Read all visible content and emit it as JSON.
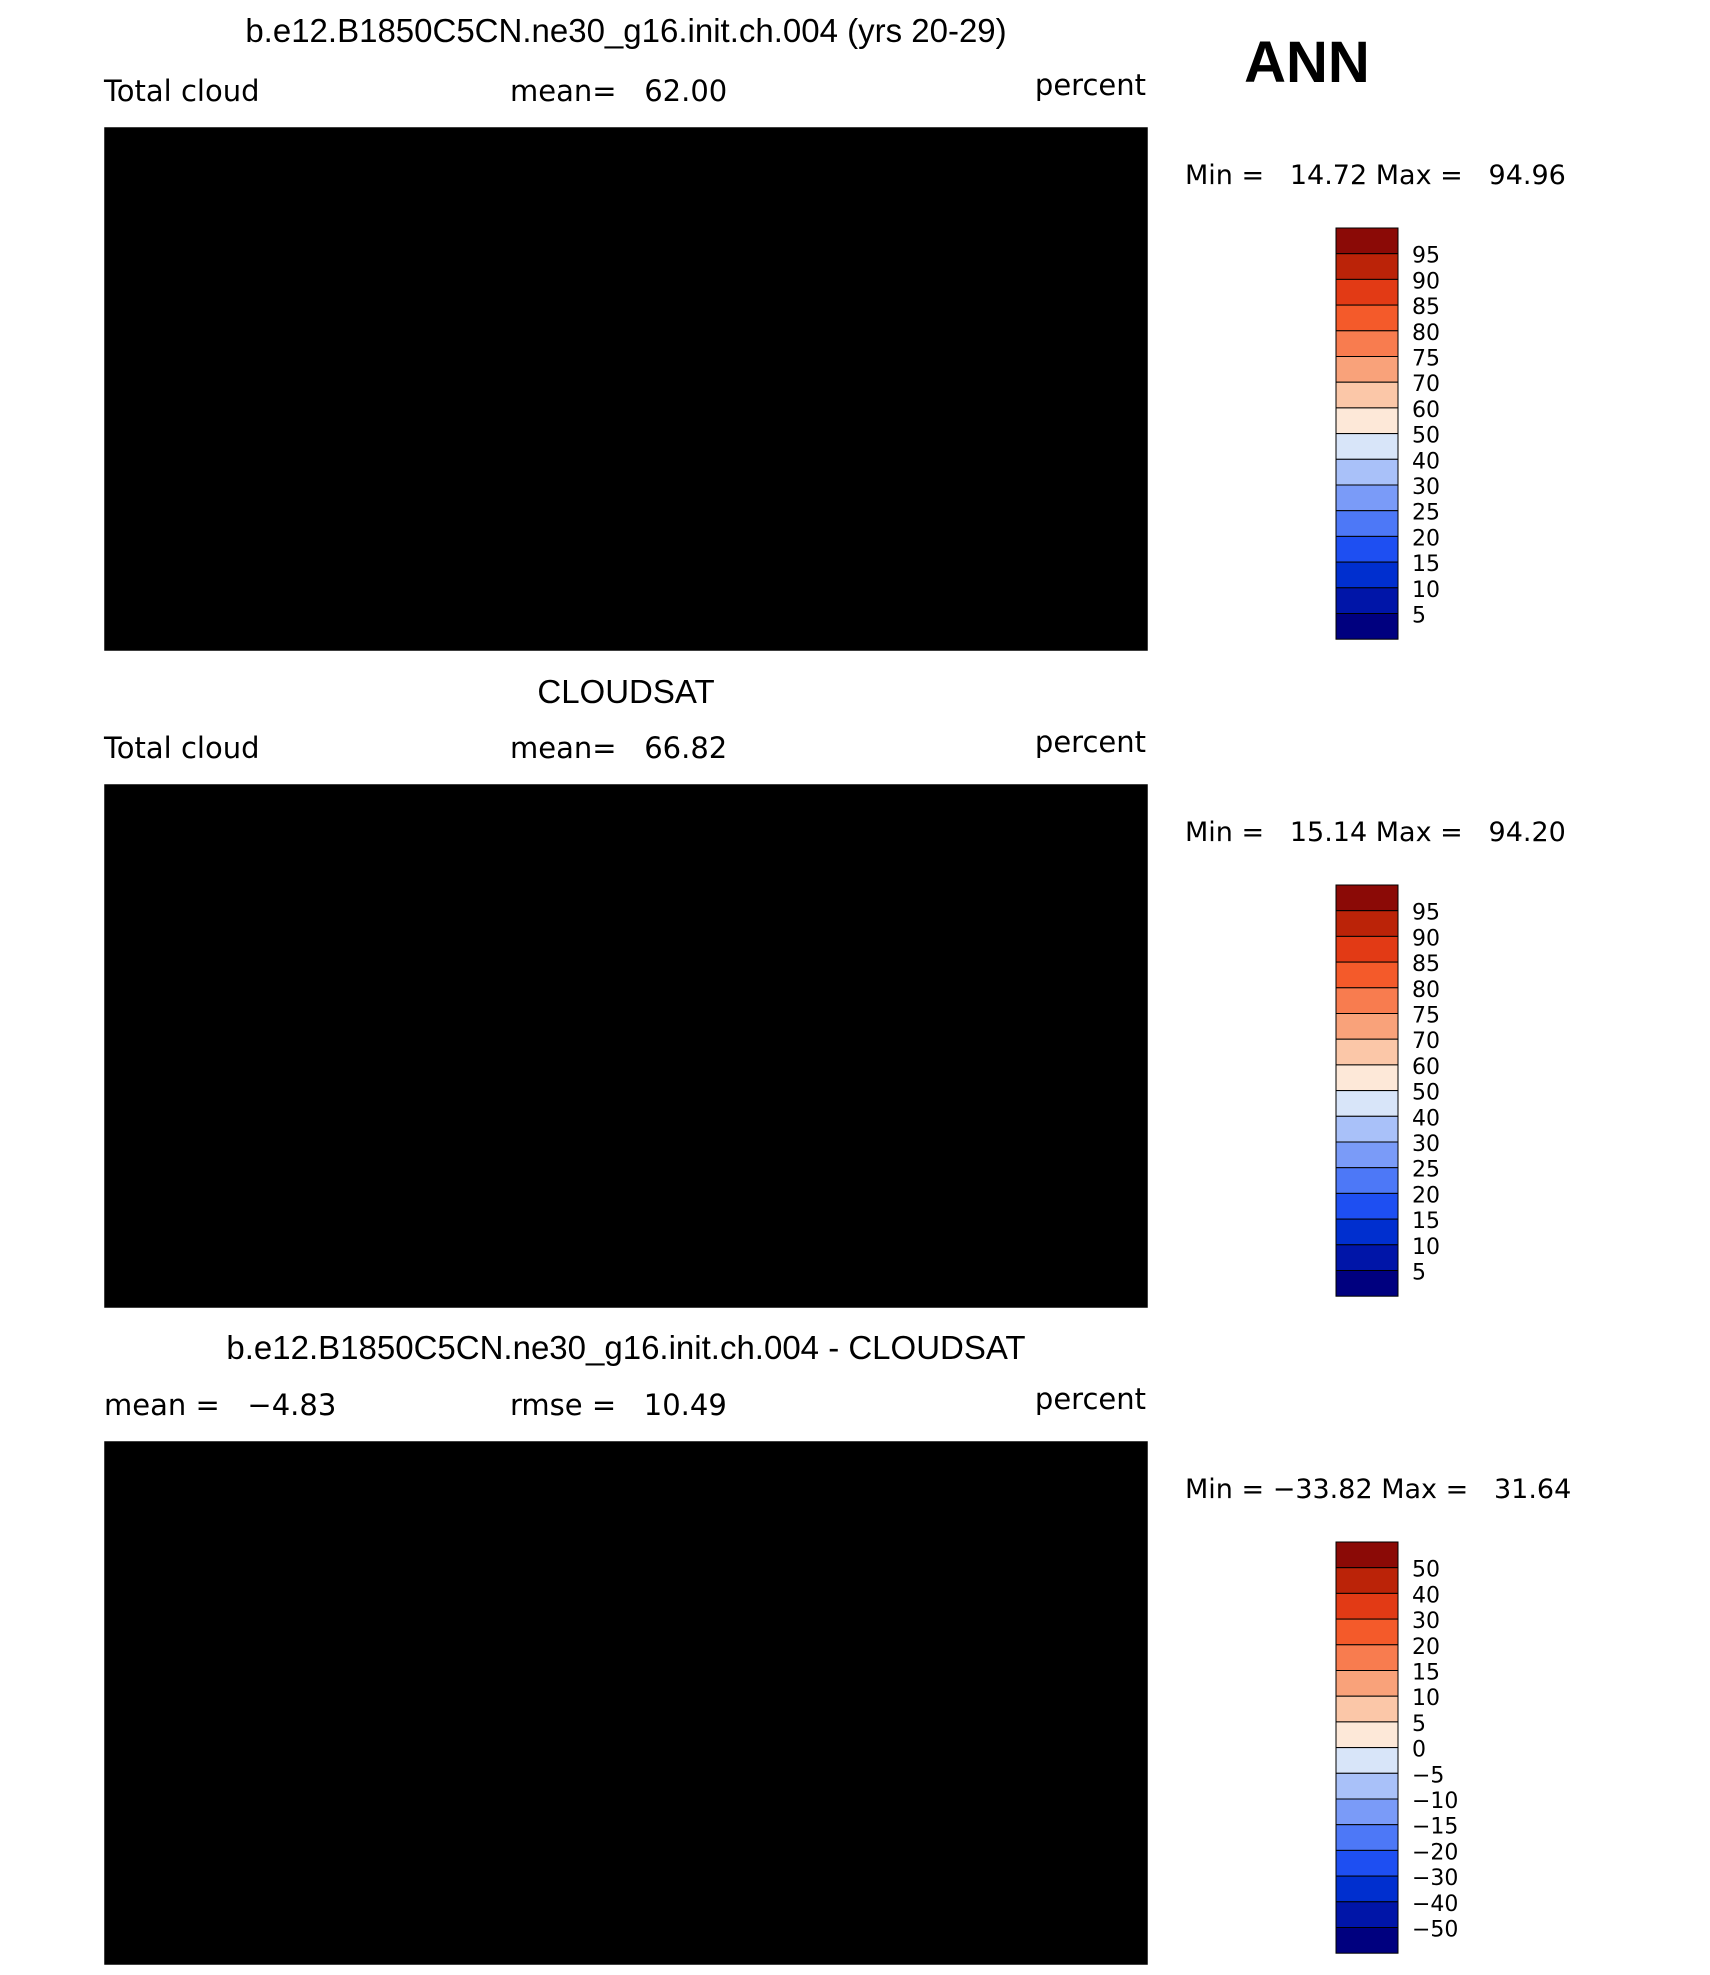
{
  "season": "ANN",
  "palette": {
    "abs": [
      "#00007f",
      "#0015a8",
      "#002fcf",
      "#1e4ff2",
      "#4d78f7",
      "#7a9bf8",
      "#a9c1f9",
      "#d8e5f9",
      "#fde8d8",
      "#fbc7a8",
      "#f9a27a",
      "#f87c4f",
      "#f45a2a",
      "#e23a15",
      "#bb2308",
      "#8b0a06"
    ],
    "diff": [
      "#00007f",
      "#0015a8",
      "#002fcf",
      "#1e4ff2",
      "#4d78f7",
      "#7a9bf8",
      "#a9c1f9",
      "#d8e5f9",
      "#fde8d8",
      "#fbc7a8",
      "#f9a27a",
      "#f87c4f",
      "#f45a2a",
      "#e23a15",
      "#bb2308",
      "#8b0a06"
    ]
  },
  "chart_data": [
    {
      "type": "heatmap",
      "title": "b.e12.B1850C5CN.ne30_g16.init.ch.004 (yrs 20-29)",
      "variable": "Total cloud",
      "mean_text": "mean=   62.00",
      "units": "percent",
      "minmax_text": "Min =   14.72 Max =   94.96",
      "min": 14.72,
      "max": 94.96,
      "mean": 62.0,
      "colorbar_labels": [
        "95",
        "90",
        "85",
        "80",
        "75",
        "70",
        "60",
        "50",
        "40",
        "30",
        "25",
        "20",
        "15",
        "10",
        "5"
      ],
      "field": "model"
    },
    {
      "type": "heatmap",
      "title": "CLOUDSAT",
      "variable": "Total cloud",
      "mean_text": "mean=   66.82",
      "units": "percent",
      "minmax_text": "Min =   15.14 Max =   94.20",
      "min": 15.14,
      "max": 94.2,
      "mean": 66.82,
      "colorbar_labels": [
        "95",
        "90",
        "85",
        "80",
        "75",
        "70",
        "60",
        "50",
        "40",
        "30",
        "25",
        "20",
        "15",
        "10",
        "5"
      ],
      "field": "obs"
    },
    {
      "type": "heatmap",
      "title": "b.e12.B1850C5CN.ne30_g16.init.ch.004 - CLOUDSAT",
      "variable": "mean =   −4.83",
      "mean_text": "rmse =   10.49",
      "units": "percent",
      "minmax_text": "Min = −33.82 Max =   31.64",
      "min": -33.82,
      "max": 31.64,
      "mean": -4.83,
      "rmse": 10.49,
      "colorbar_labels": [
        "50",
        "40",
        "30",
        "20",
        "15",
        "10",
        "5",
        "0",
        "−5",
        "−10",
        "−15",
        "−20",
        "−30",
        "−40",
        "−50"
      ],
      "field": "diff"
    }
  ]
}
